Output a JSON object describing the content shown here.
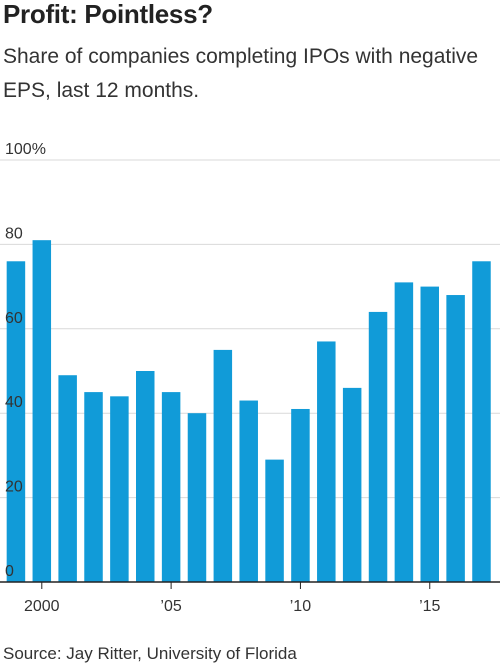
{
  "title": "Profit: Pointless?",
  "subtitle": "Share of companies completing IPOs with negative EPS, last 12 months.",
  "source": "Source: Jay Ritter, University of Florida",
  "colors": {
    "bar": "#119bd8",
    "grid": "#d9d9d9",
    "axis": "#222222"
  },
  "chart_data": {
    "type": "bar",
    "x": [
      1999,
      2000,
      2001,
      2002,
      2003,
      2004,
      2005,
      2006,
      2007,
      2008,
      2009,
      2010,
      2011,
      2012,
      2013,
      2014,
      2015,
      2016,
      2017
    ],
    "values": [
      76,
      81,
      49,
      45,
      44,
      50,
      45,
      40,
      55,
      43,
      29,
      41,
      57,
      46,
      64,
      71,
      70,
      68,
      76
    ],
    "ylim": [
      0,
      100
    ],
    "yticks": [
      0,
      20,
      40,
      60,
      80,
      100
    ],
    "ytick_labels": [
      "0",
      "20",
      "40",
      "60",
      "80",
      "100%"
    ],
    "xticks": [
      2000,
      2005,
      2010,
      2015
    ],
    "xtick_labels": [
      "2000",
      "’05",
      "’10",
      "’15"
    ],
    "grid": true
  }
}
